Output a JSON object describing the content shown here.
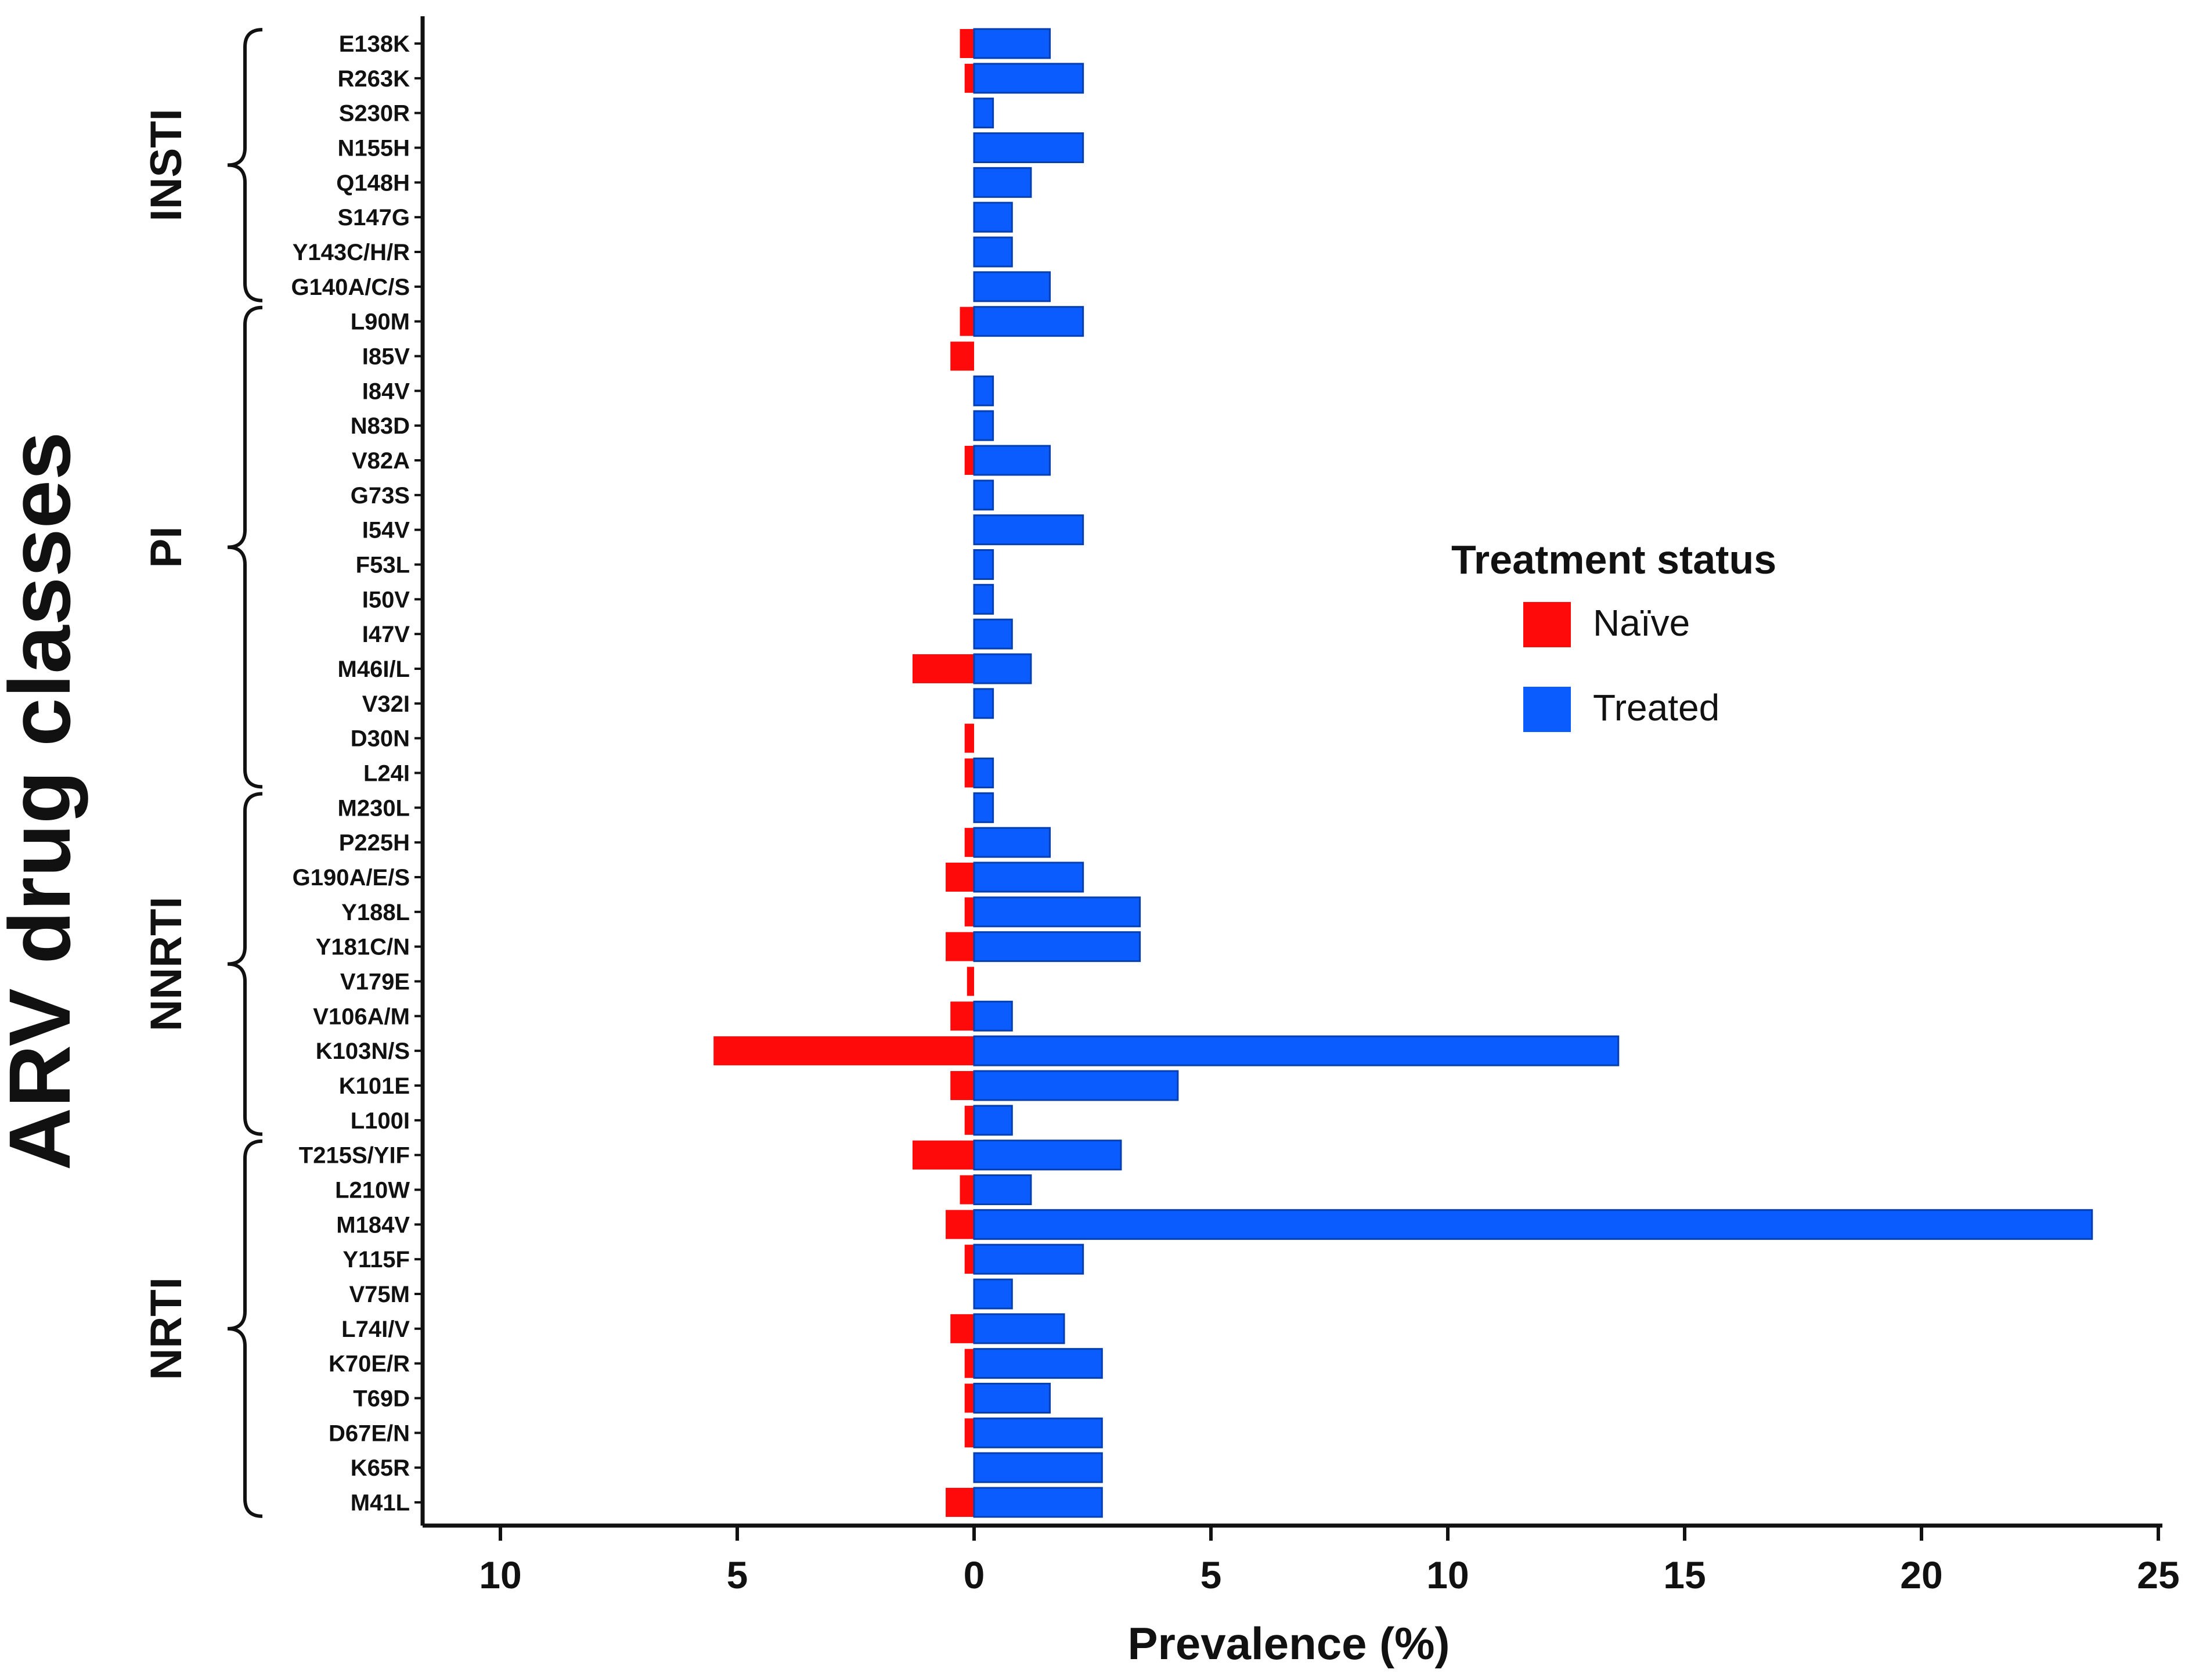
{
  "chart_data": {
    "type": "bar",
    "orientation": "horizontal-diverging",
    "title": "",
    "xlabel": "Prevalence (%)",
    "ylabel": "ARV drug classes",
    "xlim": [
      -12,
      25
    ],
    "xticks": [
      {
        "value": -10,
        "label": "10"
      },
      {
        "value": -5,
        "label": "5"
      },
      {
        "value": 0,
        "label": "0"
      },
      {
        "value": 5,
        "label": "5"
      },
      {
        "value": 10,
        "label": "10"
      },
      {
        "value": 15,
        "label": "15"
      },
      {
        "value": 20,
        "label": "20"
      },
      {
        "value": 25,
        "label": "25"
      }
    ],
    "legend": {
      "title": "Treatment status",
      "position": "right",
      "entries": [
        {
          "name": "Naïve",
          "color": "#ff0a0a"
        },
        {
          "name": "Treated",
          "color": "#0a5cff"
        }
      ]
    },
    "classes": [
      {
        "name": "INSTI",
        "first": "E138K",
        "last": "G140A/C/S"
      },
      {
        "name": "PI",
        "first": "L90M",
        "last": "L24I"
      },
      {
        "name": "NNRTI",
        "first": "M230L",
        "last": "L100I"
      },
      {
        "name": "NRTI",
        "first": "T215S/YIF",
        "last": "M41L"
      }
    ],
    "categories": [
      "E138K",
      "R263K",
      "S230R",
      "N155H",
      "Q148H",
      "S147G",
      "Y143C/H/R",
      "G140A/C/S",
      "L90M",
      "I85V",
      "I84V",
      "N83D",
      "V82A",
      "G73S",
      "I54V",
      "F53L",
      "I50V",
      "I47V",
      "M46I/L",
      "V32I",
      "D30N",
      "L24I",
      "M230L",
      "P225H",
      "G190A/E/S",
      "Y188L",
      "Y181C/N",
      "V179E",
      "V106A/M",
      "K103N/S",
      "K101E",
      "L100I",
      "T215S/YIF",
      "L210W",
      "M184V",
      "Y115F",
      "V75M",
      "L74I/V",
      "K70E/R",
      "T69D",
      "D67E/N",
      "K65R",
      "M41L"
    ],
    "series": [
      {
        "name": "Naïve",
        "values": [
          0.3,
          0.2,
          0,
          0,
          0,
          0,
          0,
          0,
          0.3,
          0.5,
          0,
          0,
          0.2,
          0,
          0,
          0,
          0,
          0,
          1.3,
          0,
          0.2,
          0.2,
          0,
          0.2,
          0.6,
          0.2,
          0.6,
          0.15,
          0.5,
          5.5,
          0.5,
          0.2,
          1.3,
          0.3,
          0.6,
          0.2,
          0,
          0.5,
          0.2,
          0.2,
          0.2,
          0,
          0.6
        ]
      },
      {
        "name": "Treated",
        "values": [
          1.6,
          2.3,
          0.4,
          2.3,
          1.2,
          0.8,
          0.8,
          1.6,
          2.3,
          0,
          0.4,
          0.4,
          1.6,
          0.4,
          2.3,
          0.4,
          0.4,
          0.8,
          1.2,
          0.4,
          0,
          0.4,
          0.4,
          1.6,
          2.3,
          3.5,
          3.5,
          0,
          0.8,
          13.6,
          4.3,
          0.8,
          3.1,
          1.2,
          23.6,
          2.3,
          0.8,
          1.9,
          2.7,
          1.6,
          2.7,
          2.7,
          2.7
        ]
      }
    ]
  }
}
